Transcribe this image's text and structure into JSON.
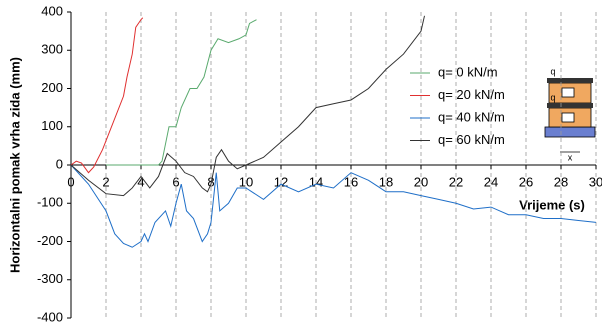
{
  "chart_data": {
    "type": "line",
    "y_label": "Horizontalni pomak vrha zida (mm)",
    "x_label": "Vrijeme (s)",
    "xlim": [
      0,
      30
    ],
    "xticks": [
      0,
      2,
      4,
      6,
      8,
      10,
      12,
      14,
      16,
      18,
      20,
      22,
      24,
      26,
      28,
      30
    ],
    "ylim": [
      -400,
      400
    ],
    "yticks": [
      400,
      300,
      200,
      100,
      0,
      -100,
      -200,
      -300,
      -400
    ],
    "grid": true,
    "legend": "right",
    "inset_labels": [
      "q",
      "q",
      "x"
    ],
    "series": [
      {
        "name": "q= 0 kN/m",
        "color": "#5aaa6e",
        "x": [
          2,
          3,
          4,
          4.5,
          5,
          5.2,
          5.6,
          6,
          6.3,
          6.8,
          7.2,
          7.6,
          8,
          8.4,
          9,
          9.6,
          10,
          10.2,
          10.6
        ],
        "values": [
          0,
          0,
          0,
          0,
          0,
          10,
          100,
          100,
          150,
          200,
          200,
          230,
          300,
          330,
          320,
          330,
          340,
          370,
          380
        ]
      },
      {
        "name": "q= 20 kN/m",
        "color": "#e03030",
        "x": [
          0,
          0.3,
          0.6,
          1,
          1.3,
          1.8,
          2.4,
          3,
          3.2,
          3.5,
          3.7,
          4,
          4.1
        ],
        "values": [
          0,
          10,
          5,
          -20,
          -5,
          40,
          110,
          180,
          230,
          290,
          360,
          380,
          385
        ]
      },
      {
        "name": "q= 40 kN/m",
        "color": "#1f6fc8",
        "x": [
          0,
          1,
          2,
          2.5,
          3,
          3.5,
          4,
          4.2,
          4.4,
          4.8,
          5.4,
          5.7,
          6,
          6.3,
          6.6,
          7,
          7.5,
          7.8,
          8,
          8.3,
          8.5,
          9,
          9.5,
          10,
          11,
          12,
          13,
          14,
          15,
          16,
          17,
          18,
          19,
          20,
          21,
          22,
          23,
          24,
          25,
          26,
          27,
          28,
          29,
          30
        ],
        "values": [
          0,
          -50,
          -120,
          -180,
          -205,
          -215,
          -200,
          -180,
          -200,
          -150,
          -120,
          -160,
          -100,
          -50,
          -120,
          -140,
          -200,
          -180,
          -150,
          -20,
          -120,
          -100,
          -60,
          -60,
          -90,
          -50,
          -70,
          -50,
          -60,
          -20,
          -40,
          -70,
          -70,
          -80,
          -90,
          -100,
          -115,
          -110,
          -130,
          -130,
          -140,
          -140,
          -145,
          -150
        ]
      },
      {
        "name": "q= 60 kN/m",
        "color": "#333333",
        "x": [
          0,
          1,
          2,
          3,
          3.5,
          4,
          4.5,
          5,
          5.5,
          6,
          6.5,
          7,
          7.5,
          7.8,
          8,
          8.3,
          8.6,
          9,
          9.5,
          10,
          11,
          12,
          13,
          14,
          15,
          16,
          17,
          18,
          19,
          20,
          20.2
        ],
        "values": [
          0,
          -40,
          -75,
          -80,
          -60,
          -30,
          -60,
          -30,
          30,
          10,
          -20,
          -30,
          -60,
          -70,
          -50,
          20,
          40,
          10,
          -10,
          0,
          20,
          60,
          100,
          150,
          160,
          170,
          200,
          250,
          290,
          350,
          390
        ]
      }
    ]
  }
}
